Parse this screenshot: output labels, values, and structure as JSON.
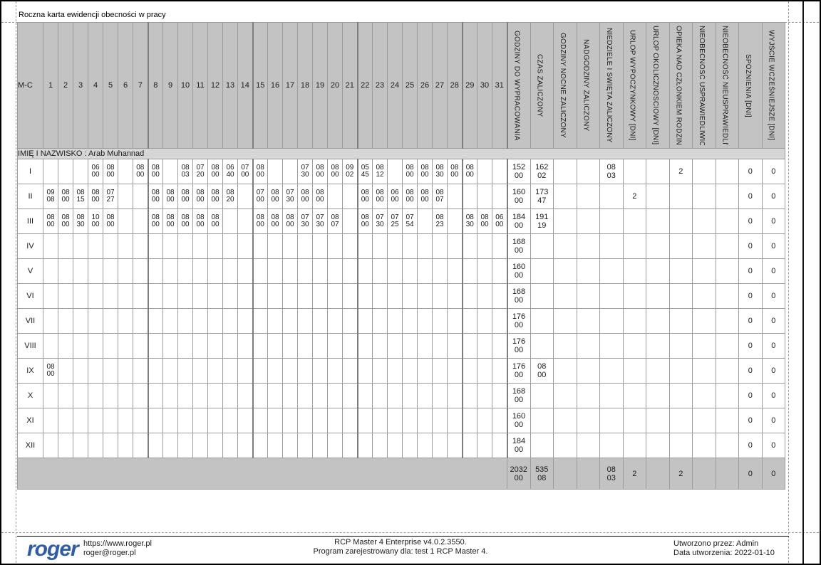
{
  "page": {
    "title": "Roczna karta ewidencji obecności w pracy",
    "employee_label": "IMIĘ I NAZWISKO : Arab Muhannad"
  },
  "table": {
    "month_col_header": "M-C",
    "day_headers": [
      "1",
      "2",
      "3",
      "4",
      "5",
      "6",
      "7",
      "8",
      "9",
      "10",
      "11",
      "12",
      "13",
      "14",
      "15",
      "16",
      "17",
      "18",
      "19",
      "20",
      "21",
      "22",
      "23",
      "24",
      "25",
      "26",
      "27",
      "28",
      "29",
      "30",
      "31"
    ],
    "summary_headers": [
      "GODZINY DO WYPRACOWANIA",
      "CZAS ZALICZONY",
      "GODZINY NOCNE ZALICZONY",
      "NADGODZINY ZALICZONY",
      "NIEDZIELE I ŚWIĘTA ZALICZONY",
      "URLOP WYPOCZYNKOWY [DNI]",
      "URLOP OKOLICZNOŚCIOWY [DNI]",
      "OPIEKA NAD CZŁONKIEM RODZINY",
      "NIEOBECNOŚĆ USPRAWIEDLIWION",
      "NIEOBECNOŚĆ NIEUSPRAWIEDLIW",
      "SPÓŹNIENIA [DNI]",
      "WYJŚCIE WCZEŚNIEJSZE  [DNI]"
    ],
    "rows": [
      {
        "month": "I",
        "days": [
          "",
          "",
          "",
          "06\n00",
          "08\n00",
          "",
          "08\n00",
          "08\n00",
          "",
          "08\n03",
          "07\n20",
          "08\n00",
          "06\n40",
          "07\n00",
          "08\n00",
          "",
          "",
          "07\n30",
          "08\n00",
          "08\n00",
          "09\n02",
          "05\n45",
          "08\n12",
          "",
          "08\n00",
          "08\n00",
          "08\n30",
          "08\n00",
          "08\n00",
          "",
          ""
        ],
        "summary": [
          "152\n00",
          "162\n02",
          "",
          "",
          "08\n03",
          "",
          "",
          "2",
          "",
          "",
          "0",
          "0"
        ]
      },
      {
        "month": "II",
        "days": [
          "09\n08",
          "08\n00",
          "08\n15",
          "08\n00",
          "07\n27",
          "",
          "",
          "08\n00",
          "08\n00",
          "08\n00",
          "08\n00",
          "08\n00",
          "08\n20",
          "",
          "07\n00",
          "08\n00",
          "07\n30",
          "08\n00",
          "08\n00",
          "",
          "",
          "08\n00",
          "08\n00",
          "06\n00",
          "08\n00",
          "08\n00",
          "08\n07",
          "",
          "",
          "",
          ""
        ],
        "summary": [
          "160\n00",
          "173\n47",
          "",
          "",
          "",
          "2",
          "",
          "",
          "",
          "",
          "0",
          "0"
        ]
      },
      {
        "month": "III",
        "days": [
          "08\n00",
          "08\n00",
          "08\n30",
          "10\n00",
          "08\n00",
          "",
          "",
          "08\n00",
          "08\n00",
          "08\n00",
          "08\n00",
          "08\n00",
          "",
          "",
          "08\n00",
          "08\n00",
          "08\n00",
          "07\n30",
          "07\n30",
          "08\n07",
          "",
          "08\n00",
          "07\n30",
          "07\n25",
          "07\n54",
          "",
          "08\n23",
          "",
          "08\n30",
          "08\n00",
          "06\n00"
        ],
        "summary": [
          "184\n00",
          "191\n19",
          "",
          "",
          "",
          "",
          "",
          "",
          "",
          "",
          "0",
          "0"
        ]
      },
      {
        "month": "IV",
        "days": [],
        "summary": [
          "168\n00",
          "",
          "",
          "",
          "",
          "",
          "",
          "",
          "",
          "",
          "0",
          "0"
        ]
      },
      {
        "month": "V",
        "days": [],
        "summary": [
          "160\n00",
          "",
          "",
          "",
          "",
          "",
          "",
          "",
          "",
          "",
          "0",
          "0"
        ]
      },
      {
        "month": "VI",
        "days": [],
        "summary": [
          "168\n00",
          "",
          "",
          "",
          "",
          "",
          "",
          "",
          "",
          "",
          "0",
          "0"
        ]
      },
      {
        "month": "VII",
        "days": [],
        "summary": [
          "176\n00",
          "",
          "",
          "",
          "",
          "",
          "",
          "",
          "",
          "",
          "0",
          "0"
        ]
      },
      {
        "month": "VIII",
        "days": [],
        "summary": [
          "176\n00",
          "",
          "",
          "",
          "",
          "",
          "",
          "",
          "",
          "",
          "0",
          "0"
        ]
      },
      {
        "month": "IX",
        "days": [
          "08\n00"
        ],
        "summary": [
          "176\n00",
          "08\n00",
          "",
          "",
          "",
          "",
          "",
          "",
          "",
          "",
          "0",
          "0"
        ]
      },
      {
        "month": "X",
        "days": [],
        "summary": [
          "168\n00",
          "",
          "",
          "",
          "",
          "",
          "",
          "",
          "",
          "",
          "0",
          "0"
        ]
      },
      {
        "month": "XI",
        "days": [],
        "summary": [
          "160\n00",
          "",
          "",
          "",
          "",
          "",
          "",
          "",
          "",
          "",
          "0",
          "0"
        ]
      },
      {
        "month": "XII",
        "days": [],
        "summary": [
          "184\n00",
          "",
          "",
          "",
          "",
          "",
          "",
          "",
          "",
          "",
          "0",
          "0"
        ]
      }
    ],
    "totals": {
      "summary": [
        "2032\n00",
        "535\n08",
        "",
        "",
        "08\n03",
        "2",
        "",
        "2",
        "",
        "",
        "0",
        "0"
      ]
    }
  },
  "footer": {
    "logo_text": "roger",
    "website": "https://www.roger.pl",
    "email": "roger@roger.pl",
    "app_line1": "RCP Master 4 Enterprise v4.0.2.3550.",
    "app_line2": "Program zarejestrowany dla: test 1 RCP Master 4.",
    "created_by": "Utworzono przez: Admin",
    "created_date": "Data utworzenia: 2022-01-10"
  },
  "colors": {
    "logo_blue": "#2e5ca8",
    "header_bg": "#c3c3c3",
    "name_band_bg": "#d6d6d6",
    "totals_bg": "#c3c3c3",
    "grid_line": "#9c9c9c"
  }
}
